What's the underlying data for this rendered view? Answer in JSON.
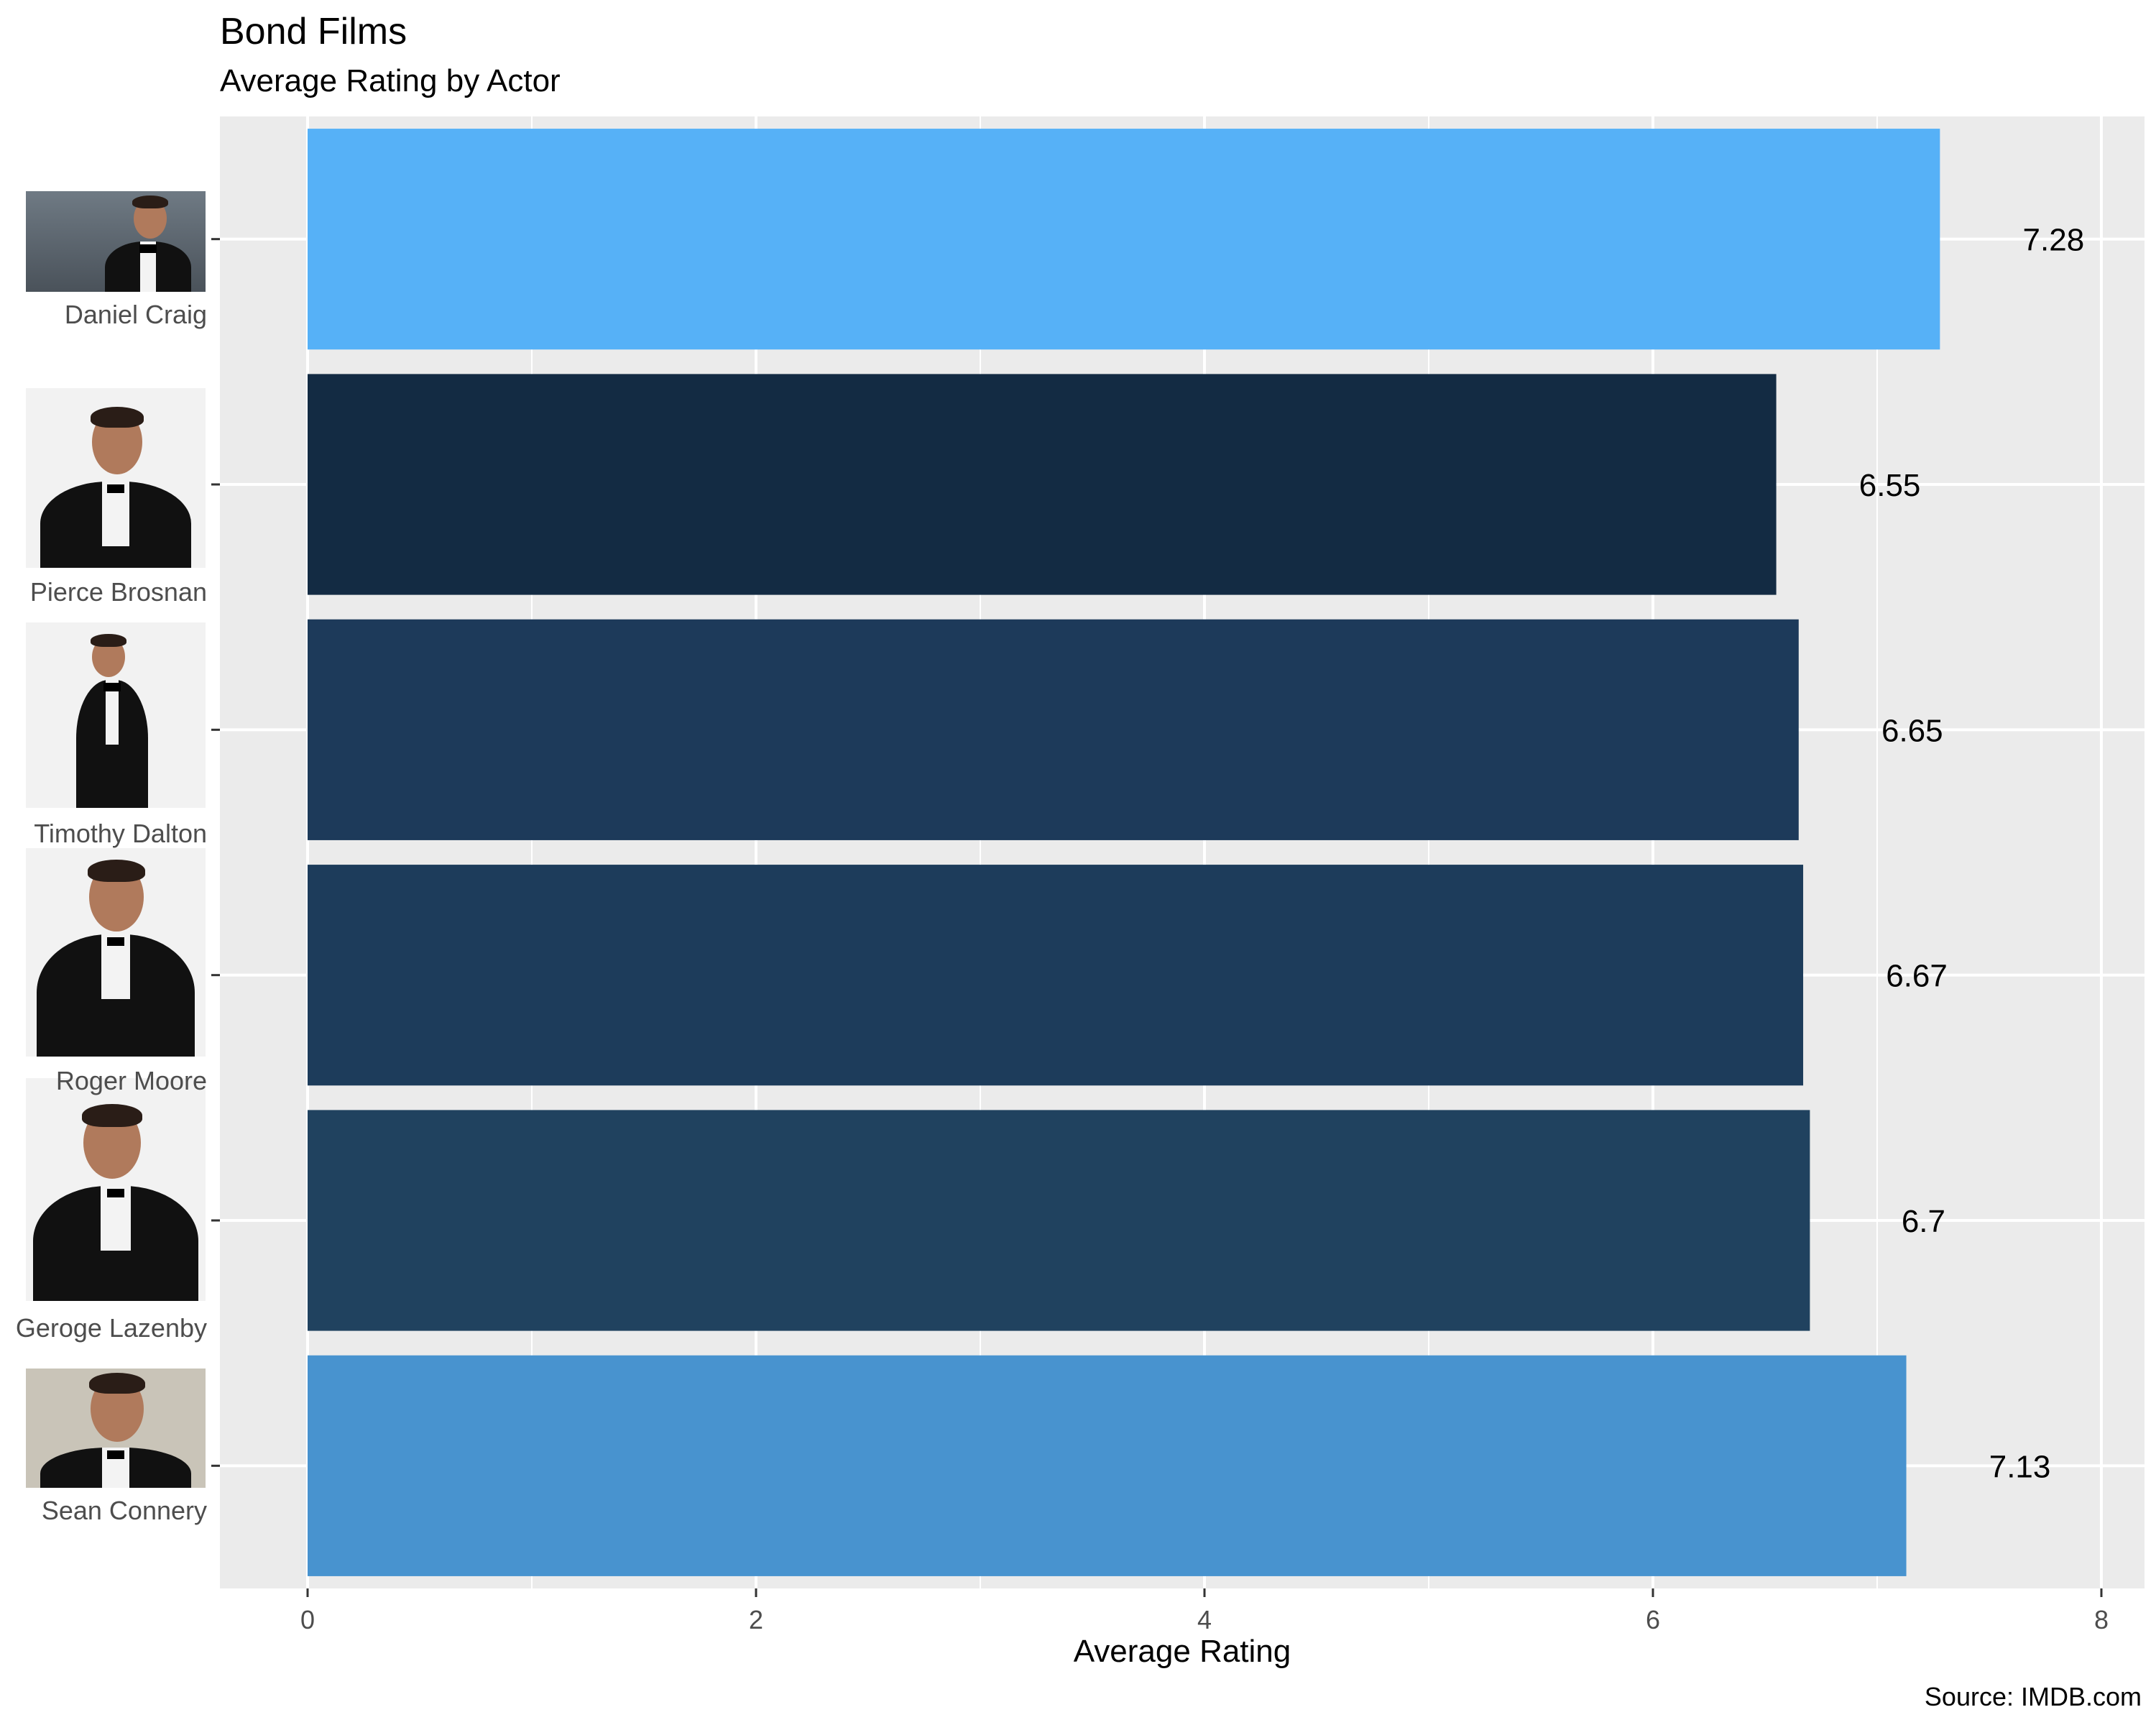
{
  "chart_data": {
    "type": "bar",
    "orientation": "horizontal",
    "title": "Bond Films",
    "subtitle": "Average Rating by Actor",
    "xlabel": "Average Rating",
    "ylabel": "",
    "caption": "Source: IMDB.com",
    "xlim": [
      0,
      8
    ],
    "xticks": [
      0,
      2,
      4,
      6,
      8
    ],
    "grid": true,
    "categories": [
      "Daniel Craig",
      "Pierce Brosnan",
      "Timothy Dalton",
      "Roger Moore",
      "Geroge Lazenby",
      "Sean Connery"
    ],
    "values": [
      7.28,
      6.55,
      6.65,
      6.67,
      6.7,
      7.13
    ],
    "value_labels": [
      "7.28",
      "6.55",
      "6.65",
      "6.67",
      "6.7",
      "7.13"
    ],
    "bar_colors": [
      "#56b1f7",
      "#132b43",
      "#1d3a5a",
      "#1d3c5b",
      "#20425f",
      "#4893cf"
    ]
  },
  "colors": {
    "panel_background": "#ebebeb",
    "gridline": "#ffffff",
    "tick_text": "#4d4d4d"
  },
  "icons": [
    "daniel-craig-photo",
    "pierce-brosnan-photo",
    "timothy-dalton-photo",
    "roger-moore-photo",
    "geroge-lazenby-photo",
    "sean-connery-photo"
  ]
}
